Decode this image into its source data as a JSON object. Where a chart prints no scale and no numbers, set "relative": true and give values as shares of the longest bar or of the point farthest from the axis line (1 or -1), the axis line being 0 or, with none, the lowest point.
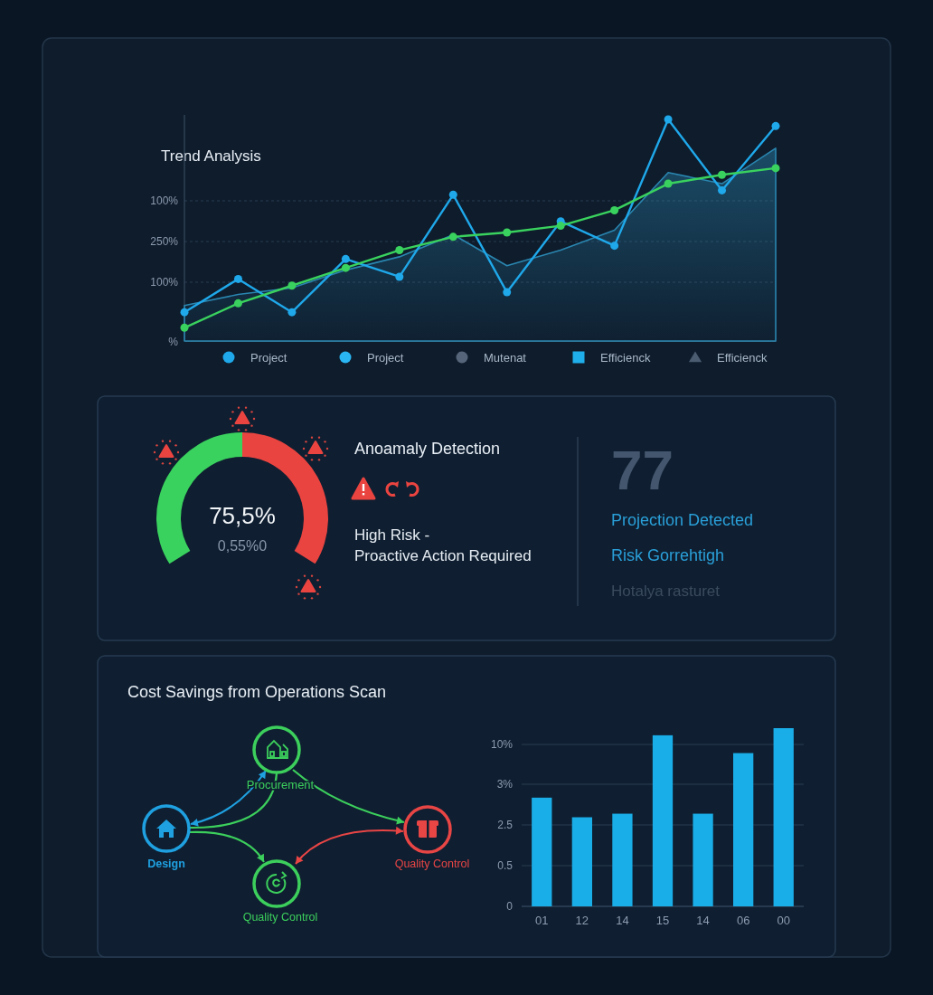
{
  "chart_data": [
    {
      "type": "line",
      "title": "Trend Analysis",
      "relative": true,
      "categories": [
        null,
        null,
        null,
        null,
        null,
        null,
        null,
        null,
        null,
        null,
        null,
        null
      ],
      "grid": "y",
      "legend": "bottom",
      "annotations": [
        "100%",
        "250%",
        "100%",
        "%"
      ],
      "series": [
        {
          "name": "Project",
          "color": "#1fa8ea",
          "marker": "circle",
          "values": [
            0.13,
            0.28,
            0.13,
            0.37,
            0.29,
            0.66,
            0.22,
            0.54,
            0.43,
            1,
            0.68,
            0.97
          ]
        },
        {
          "name": "Project",
          "color": "#2ab6f2",
          "marker": "circle",
          "values": [
            null,
            null,
            null,
            null,
            null,
            null,
            null,
            null,
            null,
            null,
            null,
            null
          ]
        },
        {
          "name": "Mutenat",
          "color": "#56657a",
          "marker": "circle",
          "values": [
            null,
            null,
            null,
            null,
            null,
            null,
            null,
            null,
            null,
            null,
            null,
            null
          ]
        },
        {
          "name": "Efficienck",
          "color": "#1fb0ec",
          "marker": "square",
          "values": [
            null,
            null,
            null,
            null,
            null,
            null,
            null,
            null,
            null,
            null,
            null,
            null
          ]
        },
        {
          "name": "Efficienck",
          "color": "#4b5b70",
          "marker": "triangle",
          "values": [
            null,
            null,
            null,
            null,
            null,
            null,
            null,
            null,
            null,
            null,
            null,
            null
          ]
        },
        {
          "type": "area",
          "color": "#2a86b0",
          "values": [
            0.16,
            0.21,
            0.24,
            0.32,
            0.38,
            0.48,
            0.34,
            0.41,
            0.5,
            0.76,
            0.71,
            0.87
          ]
        },
        {
          "type": "line",
          "color": "#3ad25e",
          "marker": "circle",
          "values": [
            0.06,
            0.17,
            0.25,
            0.33,
            0.41,
            0.47,
            0.49,
            0.52,
            0.59,
            0.71,
            0.75,
            0.78
          ]
        }
      ]
    },
    {
      "type": "donut",
      "categories": [
        null,
        null
      ],
      "values": [
        50,
        50
      ],
      "colors": [
        "#3ad25e",
        "#ea4440"
      ],
      "annotations": [
        "75,5%",
        "0,55%0"
      ]
    },
    {
      "type": "other",
      "title": "Anoamaly Detection",
      "annotations": [
        "High Risk -",
        "Proactive Action Required",
        "77",
        "Projection Detected",
        "Risk Gorrehtigh",
        "Hotalya rasturet"
      ]
    },
    {
      "type": "other",
      "title": "Cost Savings from Operations Scan",
      "annotations": [
        "Procurement",
        "Design",
        "Quality Control",
        "Quality Control"
      ]
    },
    {
      "type": "bar",
      "relative": true,
      "categories": [
        "01",
        "12",
        "14",
        "15",
        "14",
        "06",
        "00"
      ],
      "values": [
        0.61,
        0.5,
        0.52,
        0.96,
        0.52,
        0.86,
        1
      ],
      "color": "#1aaee8",
      "grid": "y",
      "annotations": [
        "10%",
        "3%",
        "2.5",
        "0.5",
        "0"
      ]
    }
  ]
}
